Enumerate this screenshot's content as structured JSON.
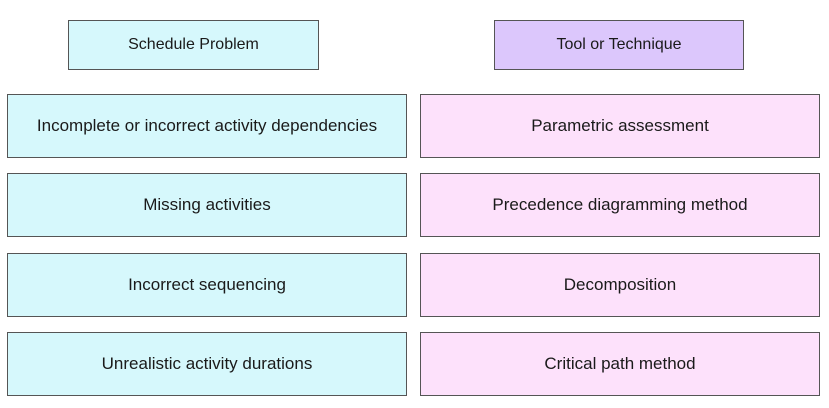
{
  "headers": {
    "problem": "Schedule Problem",
    "technique": "Tool or Technique"
  },
  "problems": [
    "Incomplete or incorrect activity dependencies",
    "Missing activities",
    "Incorrect sequencing",
    "Unrealistic activity durations"
  ],
  "techniques": [
    "Parametric assessment",
    "Precedence diagramming method",
    "Decomposition",
    "Critical path method"
  ],
  "colors": {
    "problem_header": "#d6f8fc",
    "technique_header": "#dcc7fc",
    "problem_item": "#d6f8fc",
    "technique_item": "#fde1fb",
    "border": "#555555"
  }
}
